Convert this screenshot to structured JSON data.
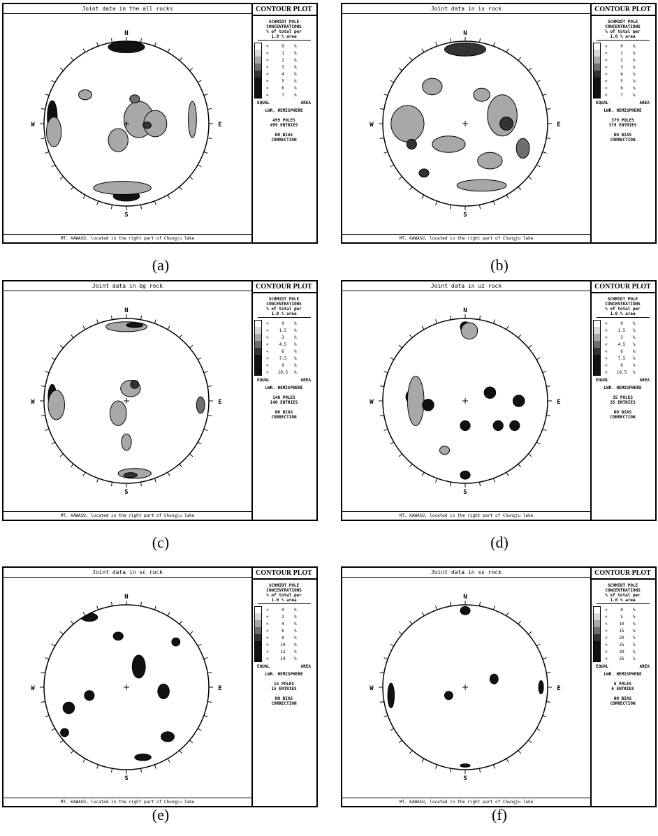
{
  "common": {
    "contour_plot": "CONTOUR PLOT",
    "hdr1": "SCHMIDT POLE",
    "hdr2": "CONCENTRATIONS",
    "hdr3": "% of total per",
    "hdr4": "1.0 % area",
    "lt": "<",
    "pct": "%",
    "equal": "EQUAL",
    "area": "AREA",
    "hemisphere": "LWR. HEMISPHERE",
    "poles": "POLES",
    "entries": "ENTRIES",
    "nobias1": "NO BIAS",
    "nobias2": "CORRECTION",
    "footer": "MT. KAWASU, located in the right part of Chungju lake",
    "dirs": {
      "n": "N",
      "s": "S",
      "w": "W",
      "e": "E"
    }
  },
  "colors": {
    "fill1": "#ffffff",
    "fill2": "#d9d9d9",
    "fill3": "#a8a8a8",
    "fill4": "#6e6e6e",
    "fill5": "#333333",
    "fill6": "#111111"
  },
  "panels": [
    {
      "caption": "(a)",
      "title": "Joint data in the all rocks",
      "legend": [
        "0",
        "1",
        "2",
        "3",
        "4",
        "5",
        "6",
        "7"
      ],
      "poles": "499",
      "entries": "499"
    },
    {
      "caption": "(b)",
      "title": "Joint data in is rock",
      "legend": [
        "0",
        "1",
        "2",
        "3",
        "4",
        "5",
        "6",
        "7"
      ],
      "poles": "379",
      "entries": "379"
    },
    {
      "caption": "(c)",
      "title": "Joint data in bg rock",
      "legend": [
        "0",
        "1.5",
        "3",
        "4.5",
        "6",
        "7.5",
        "9",
        "10.5"
      ],
      "poles": "140",
      "entries": "140"
    },
    {
      "caption": "(d)",
      "title": "Joint data in uz rock",
      "legend": [
        "0",
        "1.5",
        "3",
        "4.5",
        "6",
        "7.5",
        "9",
        "10.5"
      ],
      "poles": "35",
      "entries": "35"
    },
    {
      "caption": "(e)",
      "title": "Joint data in sc rock",
      "legend": [
        "0",
        "2",
        "4",
        "6",
        "8",
        "10",
        "12",
        "14"
      ],
      "poles": "15",
      "entries": "15"
    },
    {
      "caption": "(f)",
      "title": "Joint data in ss rock",
      "legend": [
        "0",
        "5",
        "10",
        "15",
        "20",
        "25",
        "30",
        "35"
      ],
      "poles": "6",
      "entries": "6"
    }
  ]
}
